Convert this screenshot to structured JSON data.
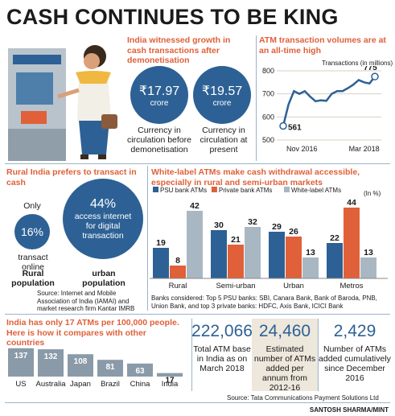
{
  "title": "CASH CONTINUES TO BE KING",
  "colors": {
    "accent": "#e0603a",
    "blue": "#2d6195",
    "gray": "#a9b7c3",
    "panel": "#ede7dc"
  },
  "currency": {
    "heading": "India witnessed growth in cash transactions after demonetisation",
    "before": {
      "value": "₹17.97",
      "unit": "crore",
      "label": "Currency in circulation before demonetisation"
    },
    "present": {
      "value": "₹19.57",
      "unit": "crore",
      "label": "Currency in circulation at present"
    }
  },
  "atm_volume": {
    "heading": "ATM transaction volumes are at an all-time high",
    "unit_label": "Transactions (in millions)",
    "start_label": "561",
    "end_label": "775"
  },
  "rural": {
    "heading": "Rural India prefers to transact in cash",
    "only": "Only",
    "rural_pct": "16%",
    "rural_desc": "transact online",
    "urban_pct": "44%",
    "urban_desc": "access internet for digital transaction",
    "rural_label": "Rural population",
    "urban_label": "urban population",
    "source": "Source: Internet and Mobile Association of India (IAMAI) and market research firm Kantar IMRB"
  },
  "whitelabel": {
    "heading": "White-label ATMs make cash withdrawal accessible, especially in rural and semi-urban markets",
    "unit": "(In %)",
    "note": "Banks considered: Top 5 PSU banks: SBI, Canara Bank, Bank of Baroda, PNB, Union Bank, and top 3 private banks: HDFC, Axis Bank, ICICI Bank"
  },
  "countries": {
    "heading": "India has only 17 ATMs per 100,000 people. Here is how it compares with other countries"
  },
  "stats": [
    {
      "value": "222,066",
      "label": "Total ATM base in India as on March 2018"
    },
    {
      "value": "24,460",
      "label": "Estimated number of ATMs added per annum from 2012-16"
    },
    {
      "value": "2,429",
      "label": "Number of ATMs added cumulatively since December 2016"
    }
  ],
  "source": "Source: Tata Communications Payment Solutions Ltd",
  "credit": "SANTOSH SHARMA/MINT",
  "chart_data": [
    {
      "type": "line",
      "title": "ATM transaction volumes are at an all-time high",
      "ylabel": "Transactions (in millions)",
      "ylim": [
        500,
        800
      ],
      "yticks": [
        500,
        600,
        700,
        800
      ],
      "xticks": [
        "Nov 2016",
        "Mar 2018"
      ],
      "grid": true,
      "x": [
        "2016-11",
        "2016-12",
        "2017-01",
        "2017-02",
        "2017-03",
        "2017-04",
        "2017-05",
        "2017-06",
        "2017-07",
        "2017-08",
        "2017-09",
        "2017-10",
        "2017-11",
        "2017-12",
        "2018-01",
        "2018-02",
        "2018-03",
        "2018-04"
      ],
      "values": [
        561,
        655,
        712,
        700,
        712,
        688,
        668,
        672,
        670,
        700,
        712,
        712,
        725,
        740,
        760,
        750,
        745,
        775
      ]
    },
    {
      "type": "bar",
      "title": "White-label ATMs make cash withdrawal accessible, especially in rural and semi-urban markets",
      "ylabel": "(In %)",
      "categories": [
        "Rural",
        "Semi-urban",
        "Urban",
        "Metros"
      ],
      "series": [
        {
          "name": "PSU bank ATMs",
          "color": "#2d6195",
          "values": [
            19,
            30,
            29,
            22
          ]
        },
        {
          "name": "Private bank ATMs",
          "color": "#e0603a",
          "values": [
            8,
            21,
            26,
            44
          ]
        },
        {
          "name": "White-label ATMs",
          "color": "#a9b7c3",
          "values": [
            42,
            32,
            13,
            13
          ]
        }
      ],
      "legend": "top"
    },
    {
      "type": "bar",
      "title": "India has only 17 ATMs per 100,000 people. Here is how it compares with other countries",
      "categories": [
        "US",
        "Australia",
        "Japan",
        "Brazil",
        "China",
        "India"
      ],
      "values": [
        137,
        132,
        108,
        81,
        63,
        17
      ]
    }
  ]
}
